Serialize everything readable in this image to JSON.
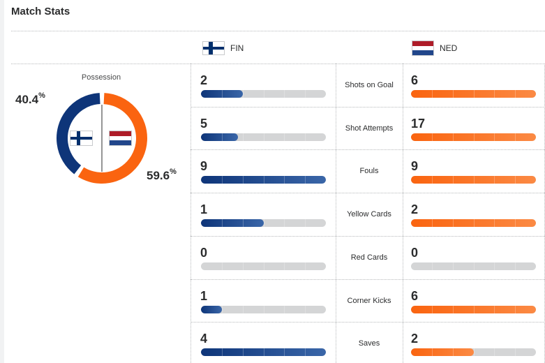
{
  "title": "Match Stats",
  "colors": {
    "home": "#0e3579",
    "away": "#fa6410",
    "track": "#d4d5d6"
  },
  "home": {
    "abbr": "FIN",
    "flag": "finland-flag-icon",
    "flag_colors": [
      "#ffffff",
      "#002f6c"
    ]
  },
  "away": {
    "abbr": "NED",
    "flag": "netherlands-flag-icon",
    "flag_colors": [
      "#ae1c28",
      "#ffffff",
      "#21468b"
    ]
  },
  "possession": {
    "label": "Possession",
    "home_value": "40.4",
    "away_value": "59.6",
    "unit": "%",
    "home_fraction": 0.404
  },
  "stats": [
    {
      "label": "Shots on Goal",
      "home": "2",
      "away": "6"
    },
    {
      "label": "Shot Attempts",
      "home": "5",
      "away": "17"
    },
    {
      "label": "Fouls",
      "home": "9",
      "away": "9"
    },
    {
      "label": "Yellow Cards",
      "home": "1",
      "away": "2"
    },
    {
      "label": "Red Cards",
      "home": "0",
      "away": "0"
    },
    {
      "label": "Corner Kicks",
      "home": "1",
      "away": "6"
    },
    {
      "label": "Saves",
      "home": "4",
      "away": "2"
    }
  ]
}
